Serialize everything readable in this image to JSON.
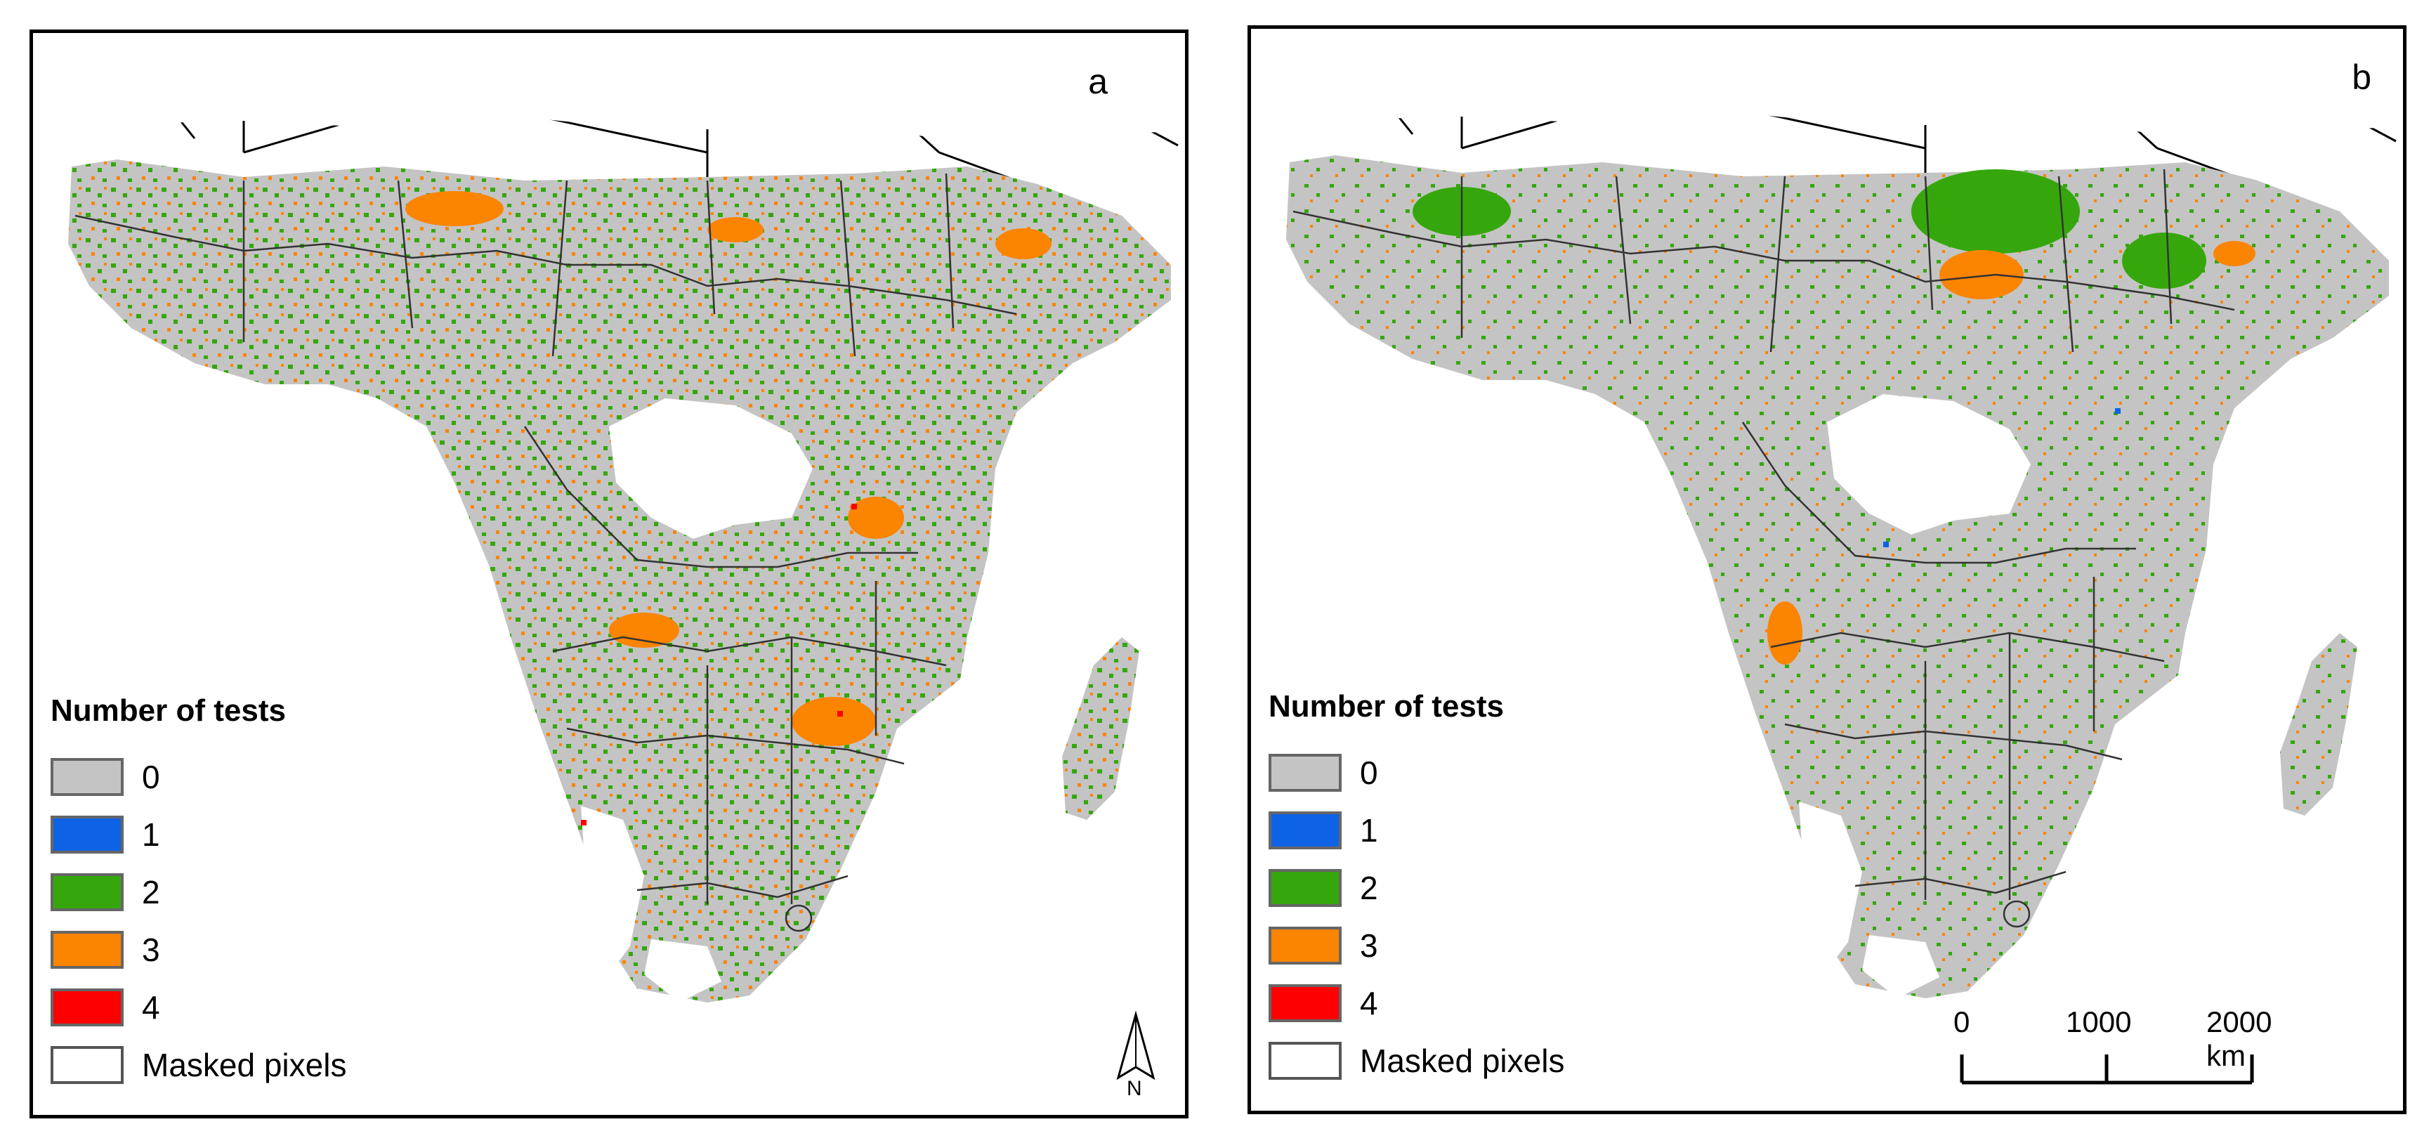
{
  "colors": {
    "test_0": "#c4c4c4",
    "test_1": "#0e62e6",
    "test_2": "#35a70d",
    "test_3": "#fb8400",
    "test_4": "#fd0000",
    "masked": "#ffffff",
    "border": "#000000"
  },
  "legend": {
    "title": "Number of tests",
    "items": [
      {
        "label": "0",
        "color_key": "test_0"
      },
      {
        "label": "1",
        "color_key": "test_1"
      },
      {
        "label": "2",
        "color_key": "test_2"
      },
      {
        "label": "3",
        "color_key": "test_3"
      },
      {
        "label": "4",
        "color_key": "test_4"
      },
      {
        "label": "Masked pixels",
        "color_key": "masked"
      }
    ]
  },
  "panels": [
    {
      "letter": "a"
    },
    {
      "letter": "b"
    }
  ],
  "north_arrow": {
    "label": "N",
    "icon": "north-arrow-icon"
  },
  "scale_bar": {
    "labels": [
      "0",
      "1000",
      "2000 km"
    ]
  }
}
